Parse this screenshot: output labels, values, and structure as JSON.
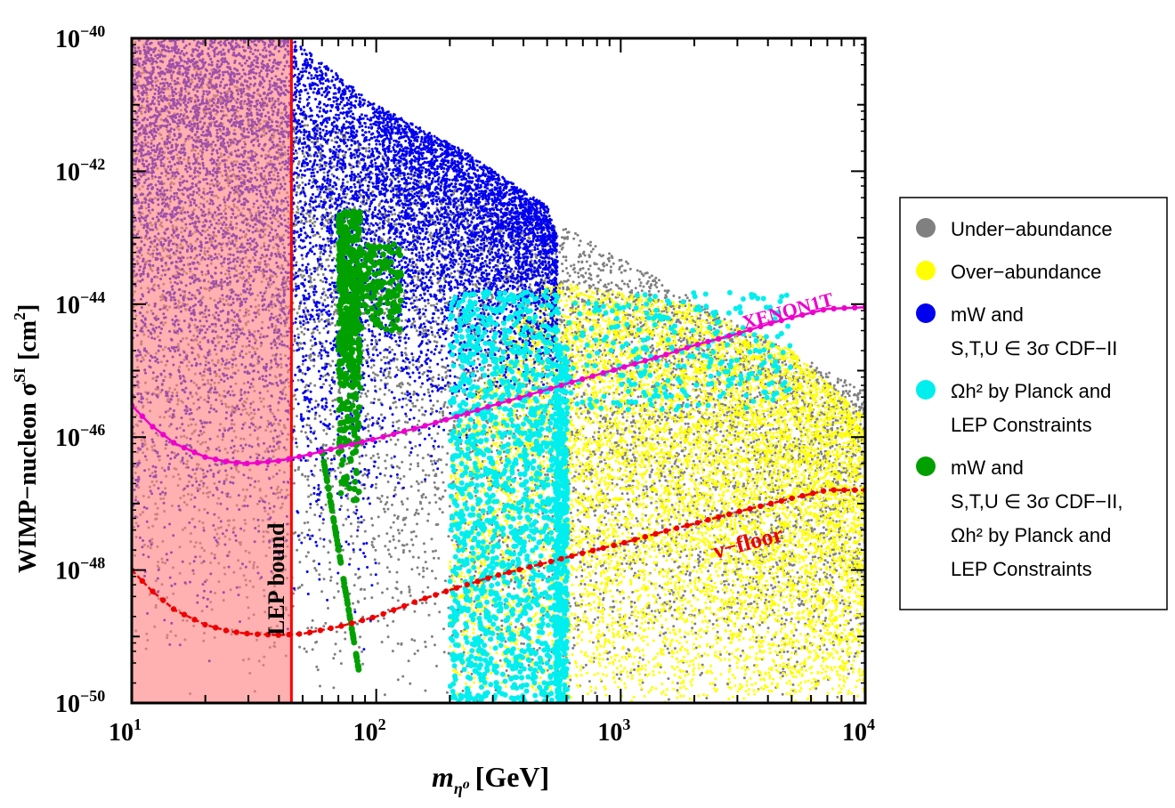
{
  "chart_data": {
    "type": "scatter",
    "x_scale": "log",
    "y_scale": "log",
    "xlim": [
      10,
      10000
    ],
    "ylim": [
      1e-50,
      1e-40
    ],
    "xlabel": {
      "main": "m",
      "sub": "η⁰",
      "unit": "[GeV]"
    },
    "ylabel": {
      "main": "WIMP−nucleon σ",
      "sup": "SI",
      "unit": "[cm",
      "unit_sup": "2",
      "unit_end": "]"
    },
    "x_ticks": [
      {
        "value": 10,
        "base": "10",
        "exp": "1"
      },
      {
        "value": 100,
        "base": "10",
        "exp": "2"
      },
      {
        "value": 1000,
        "base": "10",
        "exp": "3"
      },
      {
        "value": 10000,
        "base": "10",
        "exp": "4"
      }
    ],
    "y_ticks": [
      {
        "value": 1e-40,
        "base": "10",
        "exp": "−40"
      },
      {
        "value": 1e-42,
        "base": "10",
        "exp": "−42"
      },
      {
        "value": 1e-44,
        "base": "10",
        "exp": "−44"
      },
      {
        "value": 1e-46,
        "base": "10",
        "exp": "−46"
      },
      {
        "value": 1e-48,
        "base": "10",
        "exp": "−48"
      },
      {
        "value": 1e-50,
        "base": "10",
        "exp": "−50"
      }
    ],
    "grid": false,
    "legend_position": "right",
    "legend": [
      {
        "lines": [
          "Under−abundance"
        ],
        "color": "#808080"
      },
      {
        "lines": [
          "Over−abundance"
        ],
        "color": "#ffff00"
      },
      {
        "lines": [
          "mW and",
          "S,T,U ∈ 3σ CDF−II"
        ],
        "color": "#0000ee"
      },
      {
        "lines": [
          "Ωh² by Planck and",
          "LEP Constraints"
        ],
        "color": "#00eeee"
      },
      {
        "lines": [
          "mW and",
          "S,T,U ∈ 3σ CDF−II,",
          "Ωh² by Planck and",
          "LEP Constraints"
        ],
        "color": "#00a000"
      }
    ],
    "regions": {
      "under_abundance": {
        "color": "#808080",
        "envelope_top": [
          [
            10,
            1e-40
          ],
          [
            30,
            2e-41
          ],
          [
            100,
            2e-42
          ],
          [
            230,
            5e-43
          ],
          [
            500,
            2e-43
          ],
          [
            1000,
            5e-44
          ],
          [
            3000,
            5e-45
          ],
          [
            10000,
            5e-46
          ]
        ]
      },
      "over_abundance": {
        "color": "#ffff00",
        "xrange": [
          200,
          10000
        ],
        "envelope_top": [
          [
            600,
            2e-44
          ],
          [
            2000,
            1e-44
          ],
          [
            5000,
            2e-45
          ],
          [
            10000,
            2e-46
          ]
        ]
      },
      "mw_stu": {
        "color": "#0000ee",
        "xrange": [
          10,
          550
        ],
        "envelope_top": [
          [
            10,
            1e-40
          ],
          [
            45,
            1e-40
          ],
          [
            100,
            1e-41
          ],
          [
            230,
            2e-42
          ],
          [
            500,
            3e-43
          ],
          [
            550,
            1e-43
          ]
        ]
      },
      "omega_lep": {
        "color": "#00eeee",
        "xrange": [
          190,
          5000
        ]
      },
      "combined": {
        "color": "#00a000",
        "xrange": [
          60,
          130
        ]
      }
    },
    "lines": [
      {
        "name": "XENON1T",
        "color": "#ee00cc",
        "points": [
          [
            10,
            3e-46
          ],
          [
            12,
            1.5e-46
          ],
          [
            15,
            8e-47
          ],
          [
            20,
            5e-47
          ],
          [
            25,
            4.2e-47
          ],
          [
            30,
            4e-47
          ],
          [
            40,
            4.4e-47
          ],
          [
            50,
            5.2e-47
          ],
          [
            70,
            7e-47
          ],
          [
            100,
            9.5e-47
          ],
          [
            150,
            1.4e-46
          ],
          [
            200,
            1.9e-46
          ],
          [
            300,
            3e-46
          ],
          [
            500,
            5.2e-46
          ],
          [
            700,
            7.5e-46
          ],
          [
            1000,
            1.1e-45
          ],
          [
            1500,
            1.7e-45
          ],
          [
            2000,
            2.4e-45
          ],
          [
            3000,
            3.6e-45
          ],
          [
            4000,
            5e-45
          ],
          [
            5000,
            6.3e-45
          ],
          [
            7000,
            8.5e-45
          ],
          [
            10000,
            9e-45
          ]
        ]
      },
      {
        "name": "ν−floor",
        "color": "#ee0000",
        "points": [
          [
            10,
            1e-48
          ],
          [
            12,
            5e-49
          ],
          [
            15,
            2.5e-49
          ],
          [
            20,
            1.5e-49
          ],
          [
            25,
            1.2e-49
          ],
          [
            30,
            1.1e-49
          ],
          [
            40,
            1.05e-49
          ],
          [
            50,
            1.1e-49
          ],
          [
            70,
            1.4e-49
          ],
          [
            100,
            2e-49
          ],
          [
            150,
            3.5e-49
          ],
          [
            200,
            5e-49
          ],
          [
            300,
            8e-49
          ],
          [
            500,
            1.3e-48
          ],
          [
            700,
            1.8e-48
          ],
          [
            1000,
            2.5e-48
          ],
          [
            1500,
            3.8e-48
          ],
          [
            2000,
            5e-48
          ],
          [
            3000,
            7.5e-48
          ],
          [
            5000,
            1.2e-47
          ],
          [
            7000,
            1.6e-47
          ],
          [
            10000,
            1.6e-47
          ]
        ]
      }
    ],
    "lep_bound": {
      "x": 45,
      "color": "#ff0000",
      "fill": "#ff8080",
      "label": "LEP bound"
    },
    "annotations": [
      {
        "text": "XENON1T",
        "color": "#ee00cc",
        "x": 4000,
        "y": 1.2e-44
      },
      {
        "text": "ν−floor",
        "color": "#ee0000",
        "x": 1800,
        "y": 1.5e-48
      }
    ]
  }
}
